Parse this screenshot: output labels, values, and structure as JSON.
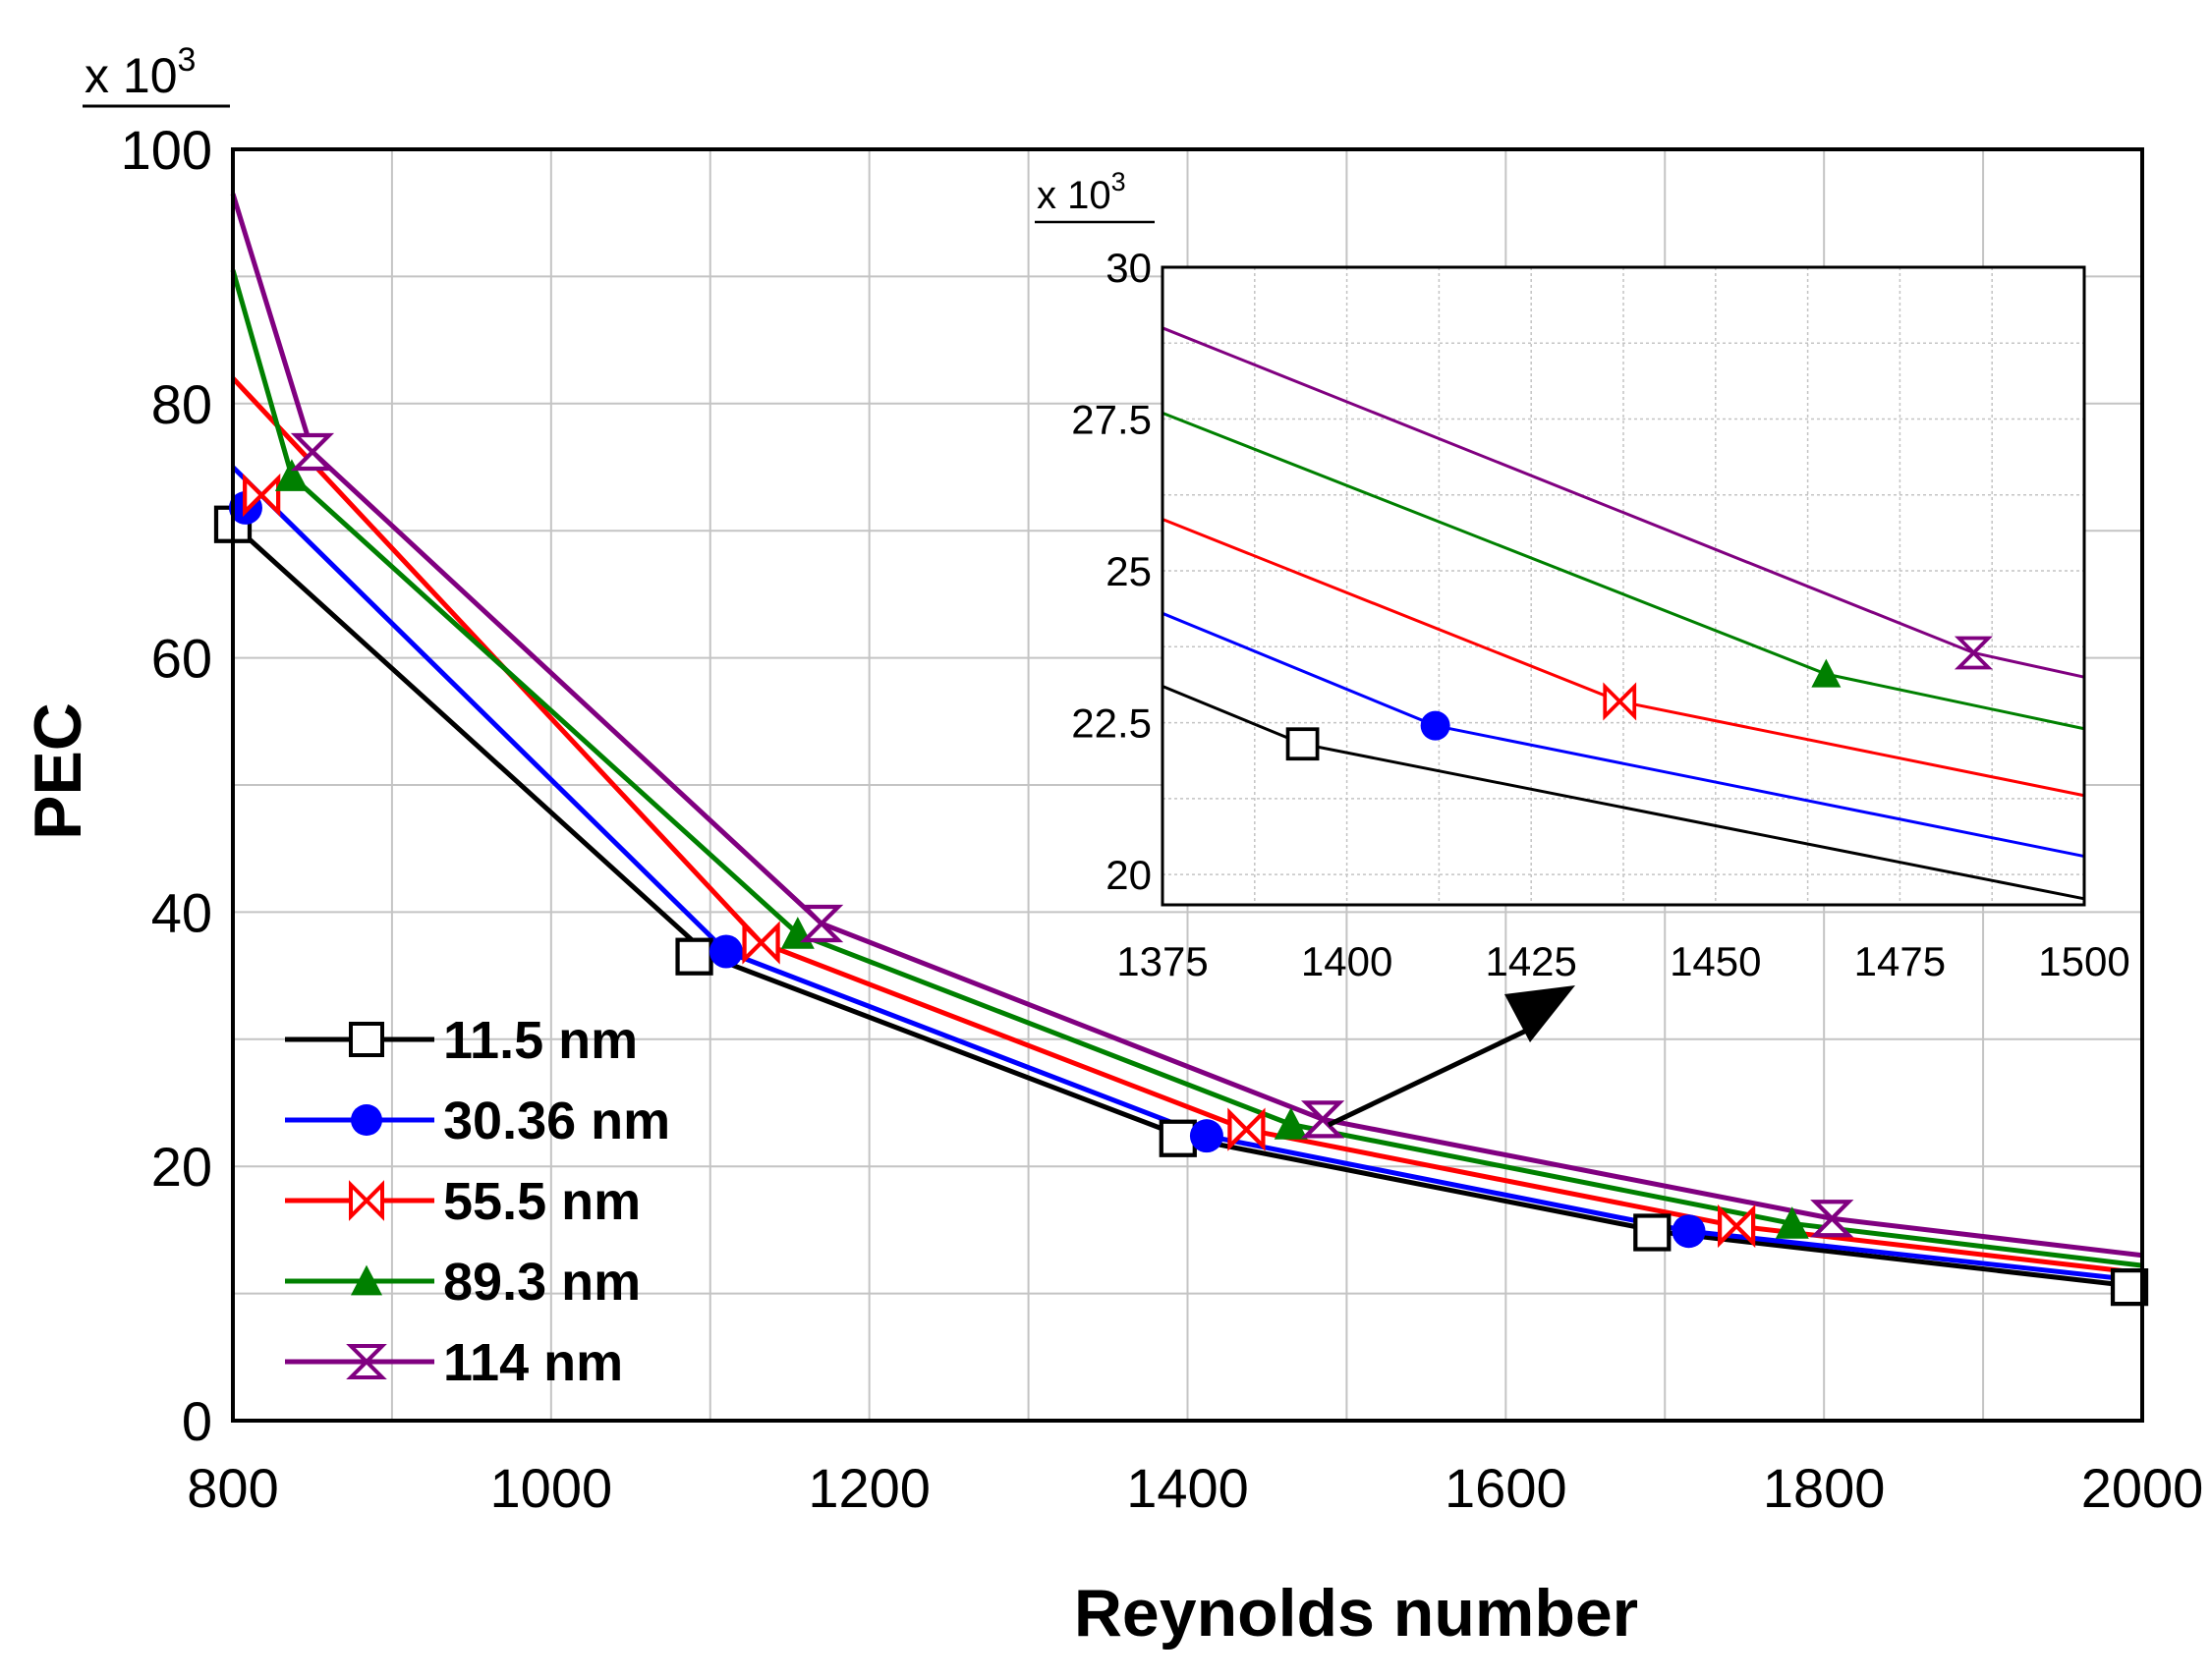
{
  "chart_data": {
    "type": "line",
    "xlabel": "Reynolds number",
    "ylabel": "PEC",
    "y_multiplier": {
      "prefix": "x 10",
      "exponent": "3"
    },
    "xlim": [
      800,
      2000
    ],
    "ylim": [
      0,
      100
    ],
    "x_ticks": [
      "800",
      "1000",
      "1200",
      "1400",
      "1600",
      "1800",
      "2000"
    ],
    "y_ticks": [
      "0",
      "20",
      "40",
      "60",
      "80",
      "100"
    ],
    "x_tick_values": [
      800,
      1000,
      1200,
      1400,
      1600,
      1800,
      2000
    ],
    "y_tick_values": [
      0,
      20,
      40,
      60,
      80,
      100
    ],
    "legend_position": "bottom-left",
    "series": [
      {
        "name": "11.5 nm",
        "color": "#000000",
        "marker": "square",
        "x": [
          800,
          1100,
          1400,
          1700,
          2000
        ],
        "y": [
          70.5,
          36.5,
          22.2,
          14.8,
          10.5
        ],
        "marker_x": [
          800,
          1090,
          1394,
          1692,
          1992
        ],
        "marker_y": [
          70.5,
          36.5,
          22.2,
          14.8,
          10.5
        ]
      },
      {
        "name": "30.36 nm",
        "color": "#0000ff",
        "marker": "circle",
        "x": [
          800,
          1110,
          1412,
          1715,
          2000
        ],
        "y": [
          75.0,
          36.9,
          22.4,
          14.9,
          11.0
        ],
        "marker_x": [
          808,
          1110,
          1412,
          1715
        ],
        "marker_y": [
          71.8,
          36.9,
          22.4,
          14.9
        ]
      },
      {
        "name": "55.5 nm",
        "color": "#ff0000",
        "marker": "bowtie",
        "x": [
          800,
          1132,
          1437,
          1745,
          2000
        ],
        "y": [
          82.0,
          37.6,
          22.9,
          15.3,
          11.6
        ],
        "marker_x": [
          818,
          1132,
          1437,
          1745
        ],
        "marker_y": [
          72.8,
          37.6,
          22.9,
          15.3
        ]
      },
      {
        "name": "89.3 nm",
        "color": "#008000",
        "marker": "triangle",
        "x": [
          800,
          837,
          1155,
          1465,
          1780,
          2000
        ],
        "y": [
          90.5,
          74.3,
          38.3,
          23.3,
          15.5,
          12.2
        ],
        "marker_x": [
          837,
          1155,
          1465,
          1780
        ],
        "marker_y": [
          74.3,
          38.3,
          23.3,
          15.5
        ]
      },
      {
        "name": "114 nm",
        "color": "#800080",
        "marker": "hourglass",
        "x": [
          800,
          850,
          1170,
          1485,
          1805,
          2000
        ],
        "y": [
          96.5,
          76.2,
          39.1,
          23.7,
          15.9,
          13.0
        ],
        "marker_x": [
          850,
          1170,
          1485,
          1805
        ],
        "marker_y": [
          76.2,
          39.1,
          23.7,
          15.9
        ]
      }
    ],
    "inset": {
      "xlim": [
        1375,
        1500
      ],
      "ylim": [
        19.5,
        30
      ],
      "x_ticks": [
        "1375",
        "1400",
        "1425",
        "1450",
        "1475",
        "1500"
      ],
      "y_ticks": [
        "20",
        "22.5",
        "25",
        "27.5",
        "30"
      ],
      "x_tick_values": [
        1375,
        1400,
        1425,
        1450,
        1475,
        1500
      ],
      "y_tick_values": [
        20,
        22.5,
        25,
        27.5,
        30
      ],
      "y_multiplier": {
        "prefix": "x 10",
        "exponent": "3"
      },
      "series": [
        {
          "name": "11.5 nm",
          "x": [
            1375,
            1394,
            1500
          ],
          "y": [
            23.1,
            22.15,
            19.6
          ],
          "marker_x": [
            1394
          ],
          "marker_y": [
            22.15
          ]
        },
        {
          "name": "30.36 nm",
          "x": [
            1375,
            1412,
            1500
          ],
          "y": [
            24.3,
            22.45,
            20.3
          ],
          "marker_x": [
            1412
          ],
          "marker_y": [
            22.45
          ]
        },
        {
          "name": "55.5 nm",
          "x": [
            1375,
            1437,
            1500
          ],
          "y": [
            25.85,
            22.85,
            21.3
          ],
          "marker_x": [
            1437
          ],
          "marker_y": [
            22.85
          ]
        },
        {
          "name": "89.3 nm",
          "x": [
            1375,
            1465,
            1500
          ],
          "y": [
            27.6,
            23.3,
            22.4
          ],
          "marker_x": [
            1465
          ],
          "marker_y": [
            23.3
          ]
        },
        {
          "name": "114 nm",
          "x": [
            1375,
            1485,
            1500
          ],
          "y": [
            29.0,
            23.65,
            23.25
          ],
          "marker_x": [
            1485
          ],
          "marker_y": [
            23.65
          ]
        }
      ]
    }
  }
}
